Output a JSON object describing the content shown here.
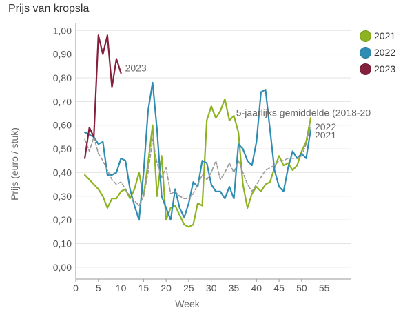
{
  "chart_data": {
    "type": "line",
    "title": "Prijs van kropsla",
    "xlabel": "Week",
    "ylabel": "Prijs (euro / stuk)",
    "xlim": [
      0,
      61
    ],
    "ylim": [
      -0.05,
      1.03
    ],
    "xticks": [
      0,
      5,
      10,
      15,
      20,
      25,
      30,
      35,
      40,
      45,
      50,
      55
    ],
    "yticks": [
      0.0,
      0.1,
      0.2,
      0.3,
      0.4,
      0.5,
      0.6,
      0.7,
      0.8,
      0.9,
      1.0
    ],
    "ytick_labels": [
      "0,00",
      "0,10",
      "0,20",
      "0,30",
      "0,40",
      "0,50",
      "0,60",
      "0,70",
      "0,80",
      "0,90",
      "1,00"
    ],
    "grid": "horizontal",
    "legend": {
      "position": "top-right",
      "entries": [
        {
          "label": "2021",
          "color": "#8db320"
        },
        {
          "label": "2022",
          "color": "#2f8db3"
        },
        {
          "label": "2023",
          "color": "#84203c"
        }
      ]
    },
    "series": [
      {
        "name": "2021",
        "color": "#8db320",
        "style": "solid",
        "end_label": "2021",
        "x": [
          2,
          3,
          4,
          5,
          6,
          7,
          8,
          9,
          10,
          11,
          12,
          13,
          14,
          15,
          16,
          17,
          18,
          19,
          20,
          21,
          22,
          23,
          24,
          25,
          26,
          27,
          28,
          29,
          30,
          31,
          32,
          33,
          34,
          35,
          36,
          37,
          38,
          39,
          40,
          41,
          42,
          43,
          44,
          45,
          46,
          47,
          48,
          49,
          50,
          51,
          52
        ],
        "y": [
          0.39,
          0.37,
          0.35,
          0.33,
          0.3,
          0.25,
          0.29,
          0.29,
          0.32,
          0.33,
          0.29,
          0.33,
          0.4,
          0.3,
          0.44,
          0.6,
          0.3,
          0.47,
          0.2,
          0.25,
          0.26,
          0.22,
          0.18,
          0.17,
          0.18,
          0.27,
          0.26,
          0.62,
          0.68,
          0.63,
          0.66,
          0.71,
          0.62,
          0.64,
          0.57,
          0.35,
          0.25,
          0.31,
          0.34,
          0.32,
          0.35,
          0.36,
          0.42,
          0.47,
          0.43,
          0.44,
          0.41,
          0.43,
          0.49,
          0.53,
          0.63
        ]
      },
      {
        "name": "2022",
        "color": "#2f8db3",
        "style": "solid",
        "end_label": "2022",
        "x": [
          2,
          3,
          4,
          5,
          6,
          7,
          8,
          9,
          10,
          11,
          12,
          13,
          14,
          15,
          16,
          17,
          18,
          19,
          20,
          21,
          22,
          23,
          24,
          25,
          26,
          27,
          28,
          29,
          30,
          31,
          32,
          33,
          34,
          35,
          36,
          37,
          38,
          39,
          40,
          41,
          42,
          43,
          44,
          45,
          46,
          47,
          48,
          49,
          50,
          51,
          52
        ],
        "y": [
          0.57,
          0.56,
          0.55,
          0.52,
          0.53,
          0.39,
          0.39,
          0.4,
          0.46,
          0.45,
          0.33,
          0.26,
          0.2,
          0.4,
          0.66,
          0.78,
          0.58,
          0.3,
          0.25,
          0.2,
          0.33,
          0.25,
          0.21,
          0.27,
          0.36,
          0.34,
          0.45,
          0.44,
          0.35,
          0.32,
          0.32,
          0.29,
          0.34,
          0.29,
          0.52,
          0.5,
          0.45,
          0.43,
          0.53,
          0.74,
          0.75,
          0.58,
          0.41,
          0.34,
          0.32,
          0.42,
          0.49,
          0.46,
          0.48,
          0.46,
          0.58
        ]
      },
      {
        "name": "5-jaarlijks gemiddelde (2018-20",
        "color": "#999999",
        "style": "dashed",
        "end_label": "5-jaarlijks gemiddelde (2018-20",
        "x": [
          2,
          3,
          4,
          5,
          6,
          7,
          8,
          9,
          10,
          11,
          12,
          13,
          14,
          15,
          16,
          17,
          18,
          19,
          20,
          21,
          22,
          23,
          24,
          25,
          26,
          27,
          28,
          29,
          30,
          31,
          32,
          33,
          34,
          35,
          36,
          37,
          38,
          39,
          40,
          41,
          42,
          43,
          44,
          45,
          46,
          47,
          48,
          49,
          50,
          51,
          52
        ],
        "y": [
          0.54,
          0.49,
          0.55,
          0.48,
          0.45,
          0.41,
          0.37,
          0.35,
          0.36,
          0.33,
          0.3,
          0.28,
          0.26,
          0.3,
          0.4,
          0.54,
          0.44,
          0.38,
          0.42,
          0.31,
          0.32,
          0.3,
          0.29,
          0.29,
          0.31,
          0.35,
          0.39,
          0.37,
          0.4,
          0.45,
          0.37,
          0.4,
          0.44,
          0.4,
          0.45,
          0.4,
          0.35,
          0.32,
          0.35,
          0.38,
          0.41,
          0.42,
          0.43,
          0.45,
          0.45,
          0.46,
          0.46,
          0.46,
          0.47,
          0.52,
          0.6
        ]
      },
      {
        "name": "2023",
        "color": "#84203c",
        "style": "solid",
        "end_label": "2023",
        "x": [
          2,
          3,
          4,
          5,
          6,
          7,
          8,
          9,
          10
        ],
        "y": [
          0.46,
          0.59,
          0.55,
          0.98,
          0.9,
          0.98,
          0.76,
          0.88,
          0.82
        ]
      }
    ]
  }
}
